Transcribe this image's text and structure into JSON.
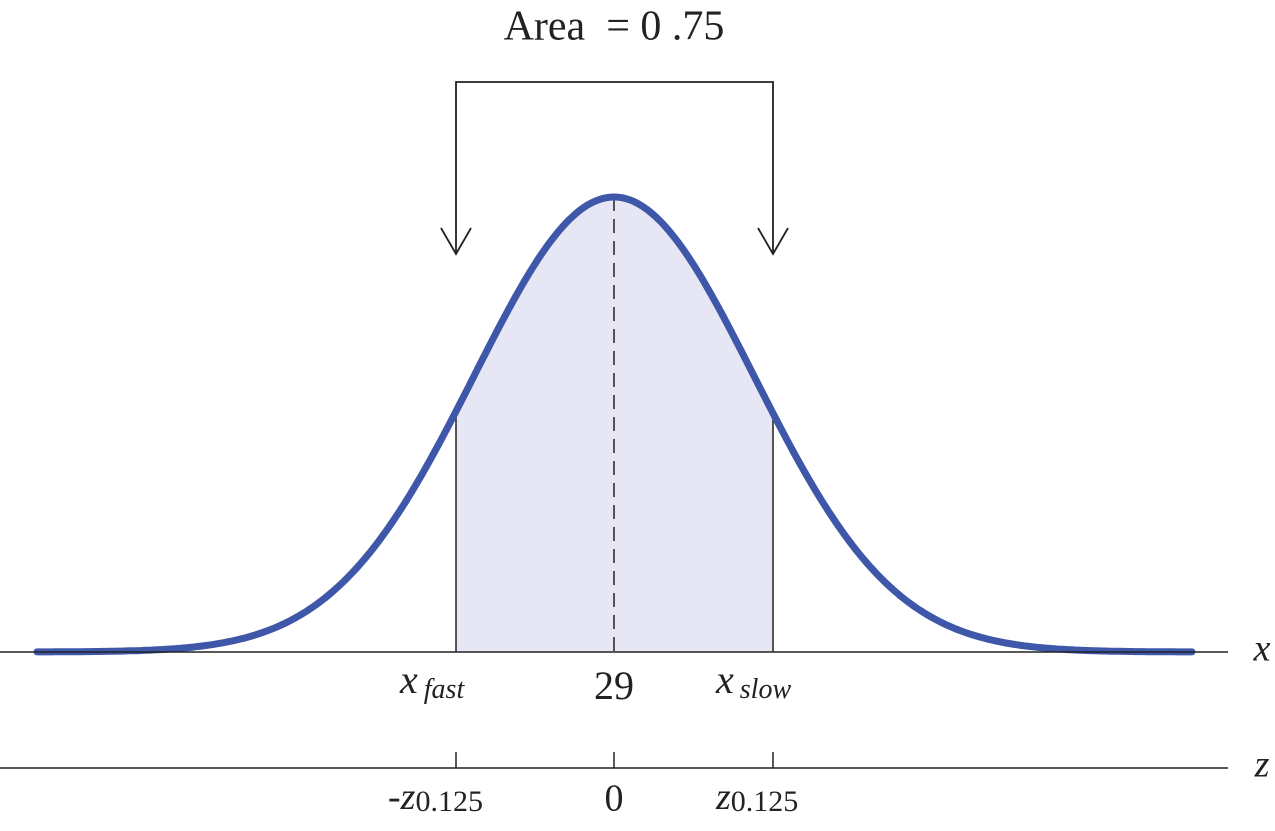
{
  "annotation": "Area  = 0 .75",
  "x_axis": {
    "name": "x",
    "labels": [
      {
        "main": "x",
        "sub": "fast"
      },
      {
        "main": "29"
      },
      {
        "main": "x",
        "sub": "slow"
      }
    ]
  },
  "z_axis": {
    "name": "z",
    "labels": [
      {
        "main": "-z",
        "sub": "0.125"
      },
      {
        "main": "0"
      },
      {
        "main": "z",
        "sub": "0.125"
      }
    ]
  }
}
